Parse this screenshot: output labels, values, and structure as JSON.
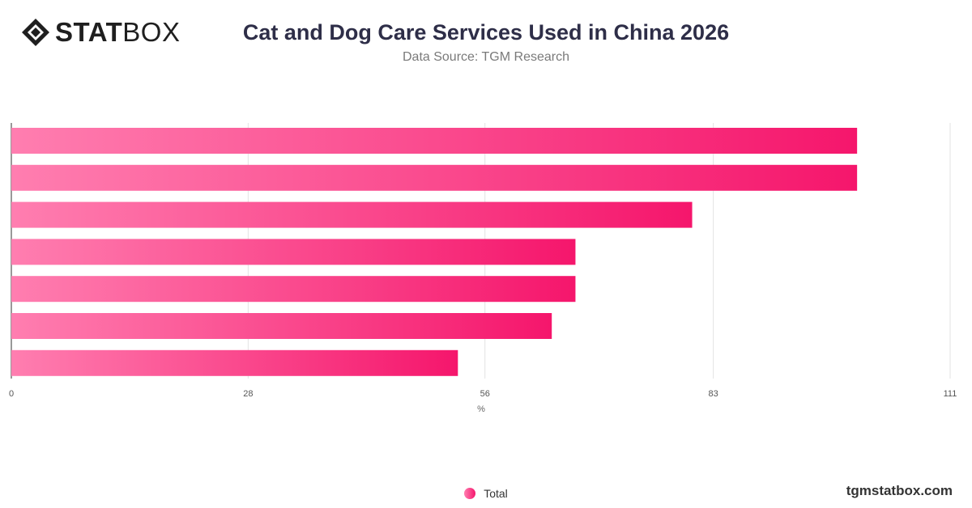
{
  "brand": {
    "logo_bold": "STAT",
    "logo_light": "BOX"
  },
  "header": {
    "title": "Cat and Dog Care Services Used in China 2026",
    "subtitle": "Data Source: TGM Research"
  },
  "chart_data": {
    "type": "bar",
    "orientation": "horizontal",
    "categories": [
      "",
      "",
      "",
      "",
      "",
      "",
      ""
    ],
    "series": [
      {
        "name": "Total",
        "values": [
          100,
          100,
          80.5,
          66.7,
          66.7,
          63.9,
          52.8
        ]
      }
    ],
    "x_ticks": [
      0,
      28,
      56,
      83,
      111
    ],
    "xlim": [
      0,
      111
    ],
    "xlabel": "%",
    "grid": true,
    "legend_position": "bottom",
    "bar_gradient": [
      "#ff7eb0",
      "#f5166c"
    ]
  },
  "legend": {
    "label": "Total"
  },
  "footer": {
    "site": "tgmstatbox.com"
  }
}
